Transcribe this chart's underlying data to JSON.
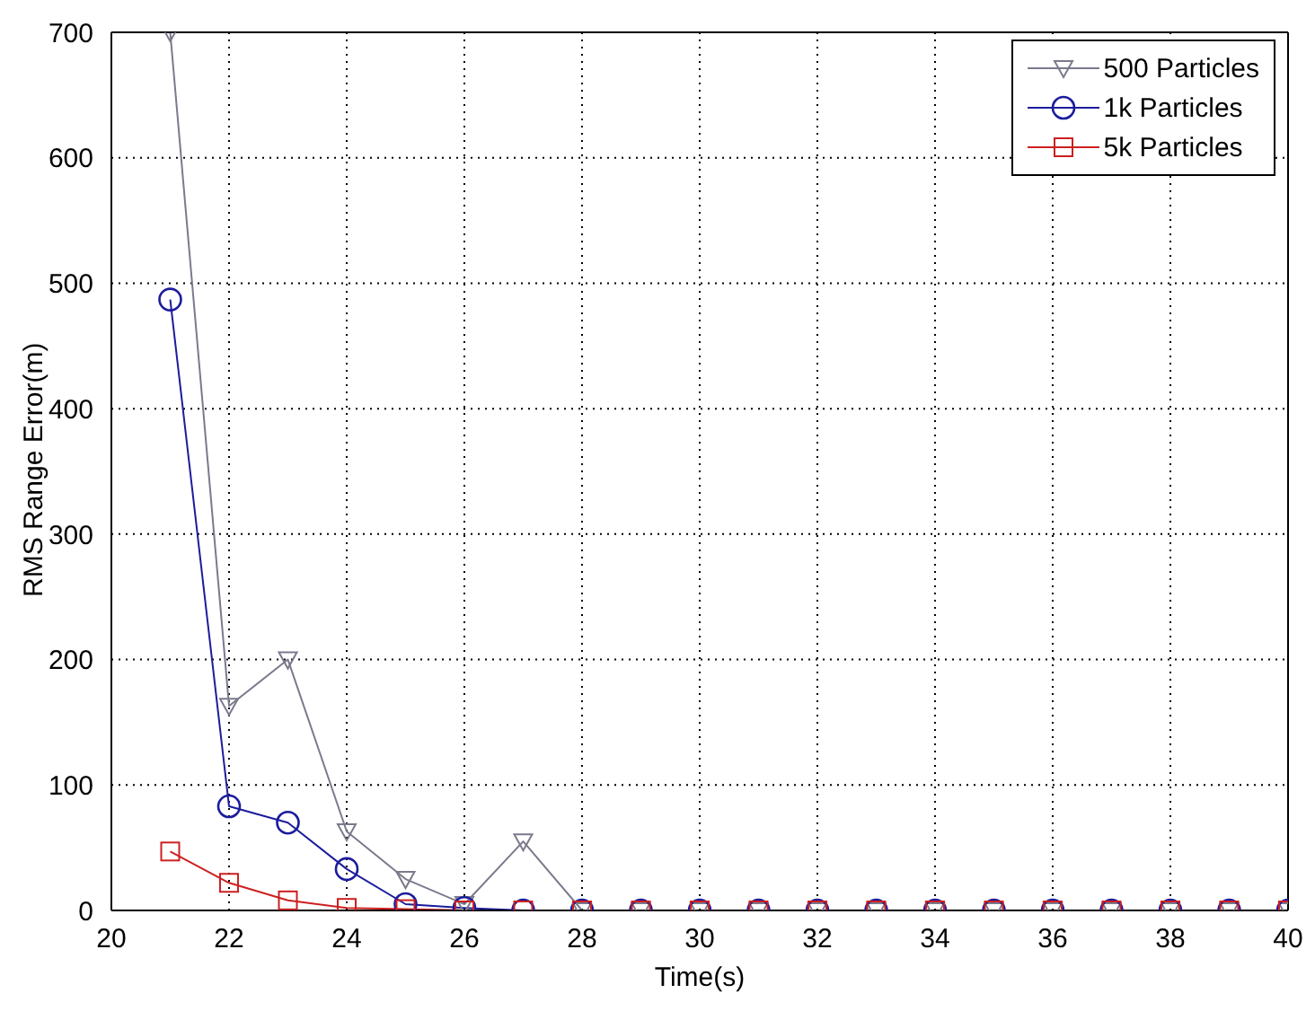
{
  "chart_data": {
    "type": "line",
    "xlabel": "Time(s)",
    "ylabel": "RMS Range Error(m)",
    "x": [
      21,
      22,
      23,
      24,
      25,
      26,
      27,
      28,
      29,
      30,
      31,
      32,
      33,
      34,
      35,
      36,
      37,
      38,
      39,
      40
    ],
    "series": [
      {
        "name": "500 Particles",
        "color": "#7a7a8c",
        "marker": "triangle",
        "values": [
          700,
          163,
          200,
          63,
          25,
          5,
          55,
          0,
          0,
          0,
          0,
          0,
          0,
          0,
          0,
          0,
          0,
          0,
          0,
          0
        ]
      },
      {
        "name": "1k Particles",
        "color": "#1c1c9c",
        "marker": "circle",
        "values": [
          487,
          83,
          70,
          33,
          5,
          2,
          0,
          0,
          0,
          0,
          0,
          0,
          0,
          0,
          0,
          0,
          0,
          0,
          0,
          0
        ]
      },
      {
        "name": "5k Particles",
        "color": "#cc2020",
        "marker": "square",
        "values": [
          47,
          22,
          8,
          2,
          1,
          0,
          0,
          0,
          0,
          0,
          0,
          0,
          0,
          0,
          0,
          0,
          0,
          0,
          0,
          0
        ]
      }
    ],
    "xlim": [
      20,
      40
    ],
    "xticks": [
      20,
      22,
      24,
      26,
      28,
      30,
      32,
      34,
      36,
      38,
      40
    ],
    "ylim": [
      0,
      700
    ],
    "yticks": [
      0,
      100,
      200,
      300,
      400,
      500,
      600,
      700
    ],
    "grid": true,
    "legend": "top right",
    "line_style": "solid"
  }
}
